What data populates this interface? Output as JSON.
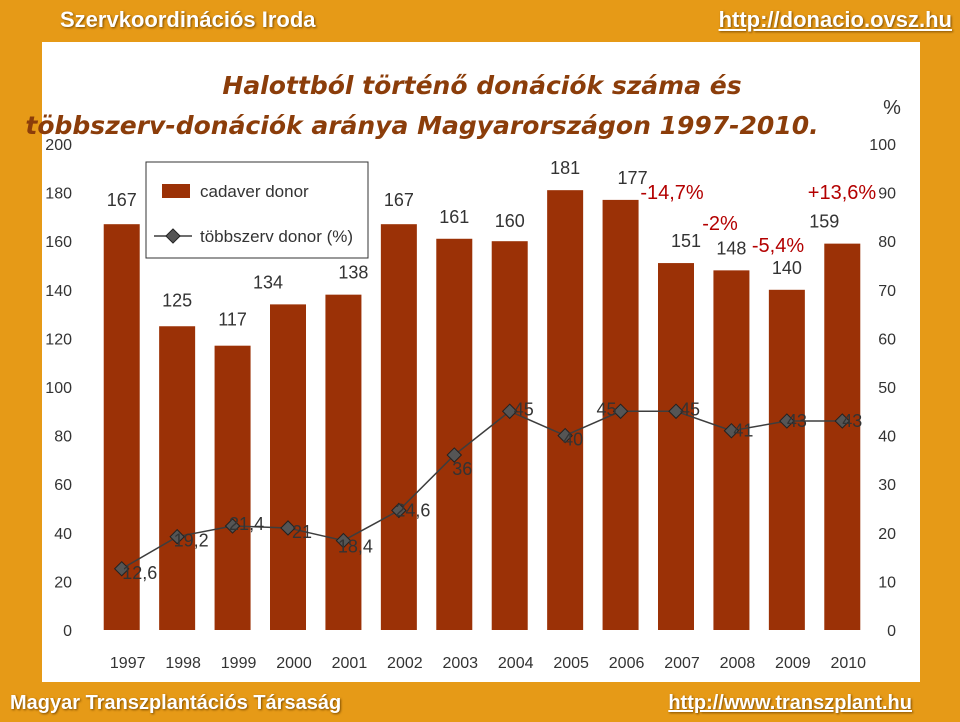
{
  "header": {
    "left": "Szervkoordinációs Iroda",
    "right": "http://donacio.ovsz.hu"
  },
  "footer": {
    "left": "Magyar Transzplantációs Társaság",
    "right": "http://www.transzplant.hu"
  },
  "colors": {
    "background": "#e69a17",
    "bar": "#9b3106",
    "line": "#3d3d3d",
    "marker": "#555555",
    "title": "#8b3d0a"
  },
  "chart_data": {
    "type": "bar+line",
    "title_line1": "Halottból történő donációk száma és",
    "title_line2": "többszerv-donációk aránya Magyarországon 1997-2010.",
    "categories": [
      "1997",
      "1998",
      "1999",
      "2000",
      "2001",
      "2002",
      "2003",
      "2004",
      "2005",
      "2006",
      "2007",
      "2008",
      "2009",
      "2010"
    ],
    "series": [
      {
        "name": "cadaver donor",
        "axis": "left",
        "type": "bar",
        "values": [
          167,
          125,
          117,
          134,
          138,
          167,
          161,
          160,
          181,
          177,
          151,
          148,
          140,
          159
        ]
      },
      {
        "name": "többszerv donor (%)",
        "axis": "right",
        "type": "line",
        "values": [
          12.6,
          19.2,
          21.4,
          21,
          18.4,
          24.6,
          36,
          45,
          40,
          45,
          45,
          41,
          43,
          43
        ],
        "labels": [
          "12,6",
          "19,2",
          "21,4",
          "21",
          "18,4",
          "24,6",
          "36",
          "45",
          "40",
          "45",
          "45",
          "41",
          "43",
          "43"
        ]
      }
    ],
    "left_axis": {
      "ticks": [
        "0",
        "20",
        "40",
        "60",
        "80",
        "100",
        "120",
        "140",
        "160",
        "180",
        "200"
      ],
      "ylim": [
        0,
        200
      ]
    },
    "right_axis": {
      "title": "%",
      "ticks": [
        "0",
        "10",
        "20",
        "30",
        "40",
        "50",
        "60",
        "70",
        "80",
        "90",
        "100"
      ],
      "ylim": [
        0,
        100
      ]
    },
    "annotations": [
      "-14,7%",
      "-2%",
      "-5,4%",
      "+13,6%"
    ],
    "legend": {
      "placement": "top-left",
      "bar": "cadaver donor",
      "line": "többszerv donor (%)"
    }
  }
}
